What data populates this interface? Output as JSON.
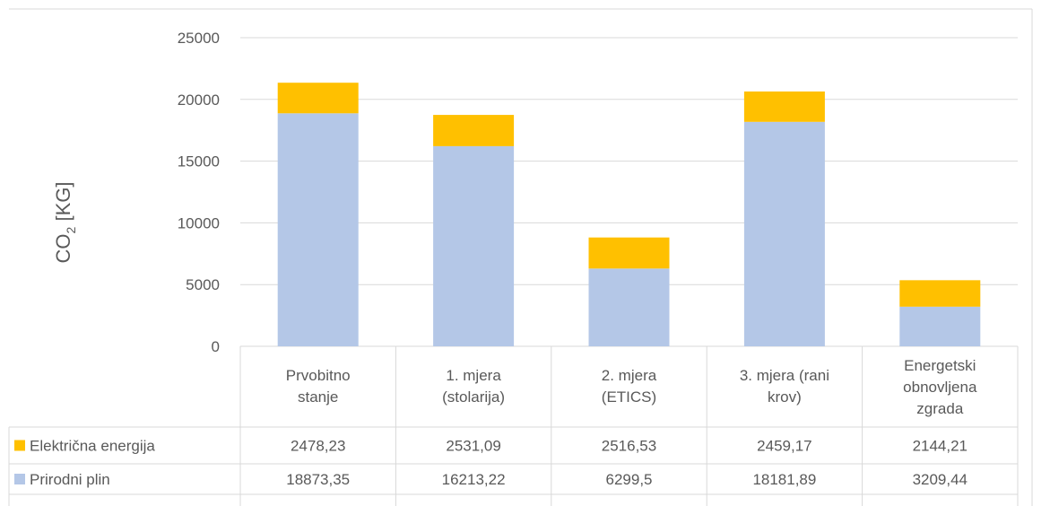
{
  "chart_data": {
    "type": "bar",
    "stacked": true,
    "ylabel_main": "CO",
    "ylabel_sub": "2",
    "ylabel_unit": " [KG]",
    "ylim": [
      0,
      25000
    ],
    "yticks": [
      0,
      5000,
      10000,
      15000,
      20000,
      25000
    ],
    "grid": true,
    "legend": "data-table",
    "categories": [
      [
        "Prvobitno",
        "stanje"
      ],
      [
        "1. mjera",
        "(stolarija)"
      ],
      [
        "2. mjera",
        "(ETICS)"
      ],
      [
        "3. mjera (rani",
        "krov)"
      ],
      [
        "Energetski",
        "obnovljena",
        "zgrada"
      ]
    ],
    "series": [
      {
        "name": "Prirodni plin",
        "color": "#b4c7e7",
        "values": [
          18873.35,
          16213.22,
          6299.5,
          18181.89,
          3209.44
        ],
        "labels": [
          "18873,35",
          "16213,22",
          "6299,5",
          "18181,89",
          "3209,44"
        ]
      },
      {
        "name": "Električna energija",
        "color": "#ffc000",
        "values": [
          2478.23,
          2531.09,
          2516.53,
          2459.17,
          2144.21
        ],
        "labels": [
          "2478,23",
          "2531,09",
          "2516,53",
          "2459,17",
          "2144,21"
        ]
      }
    ],
    "table_row_order": [
      1,
      0
    ]
  }
}
